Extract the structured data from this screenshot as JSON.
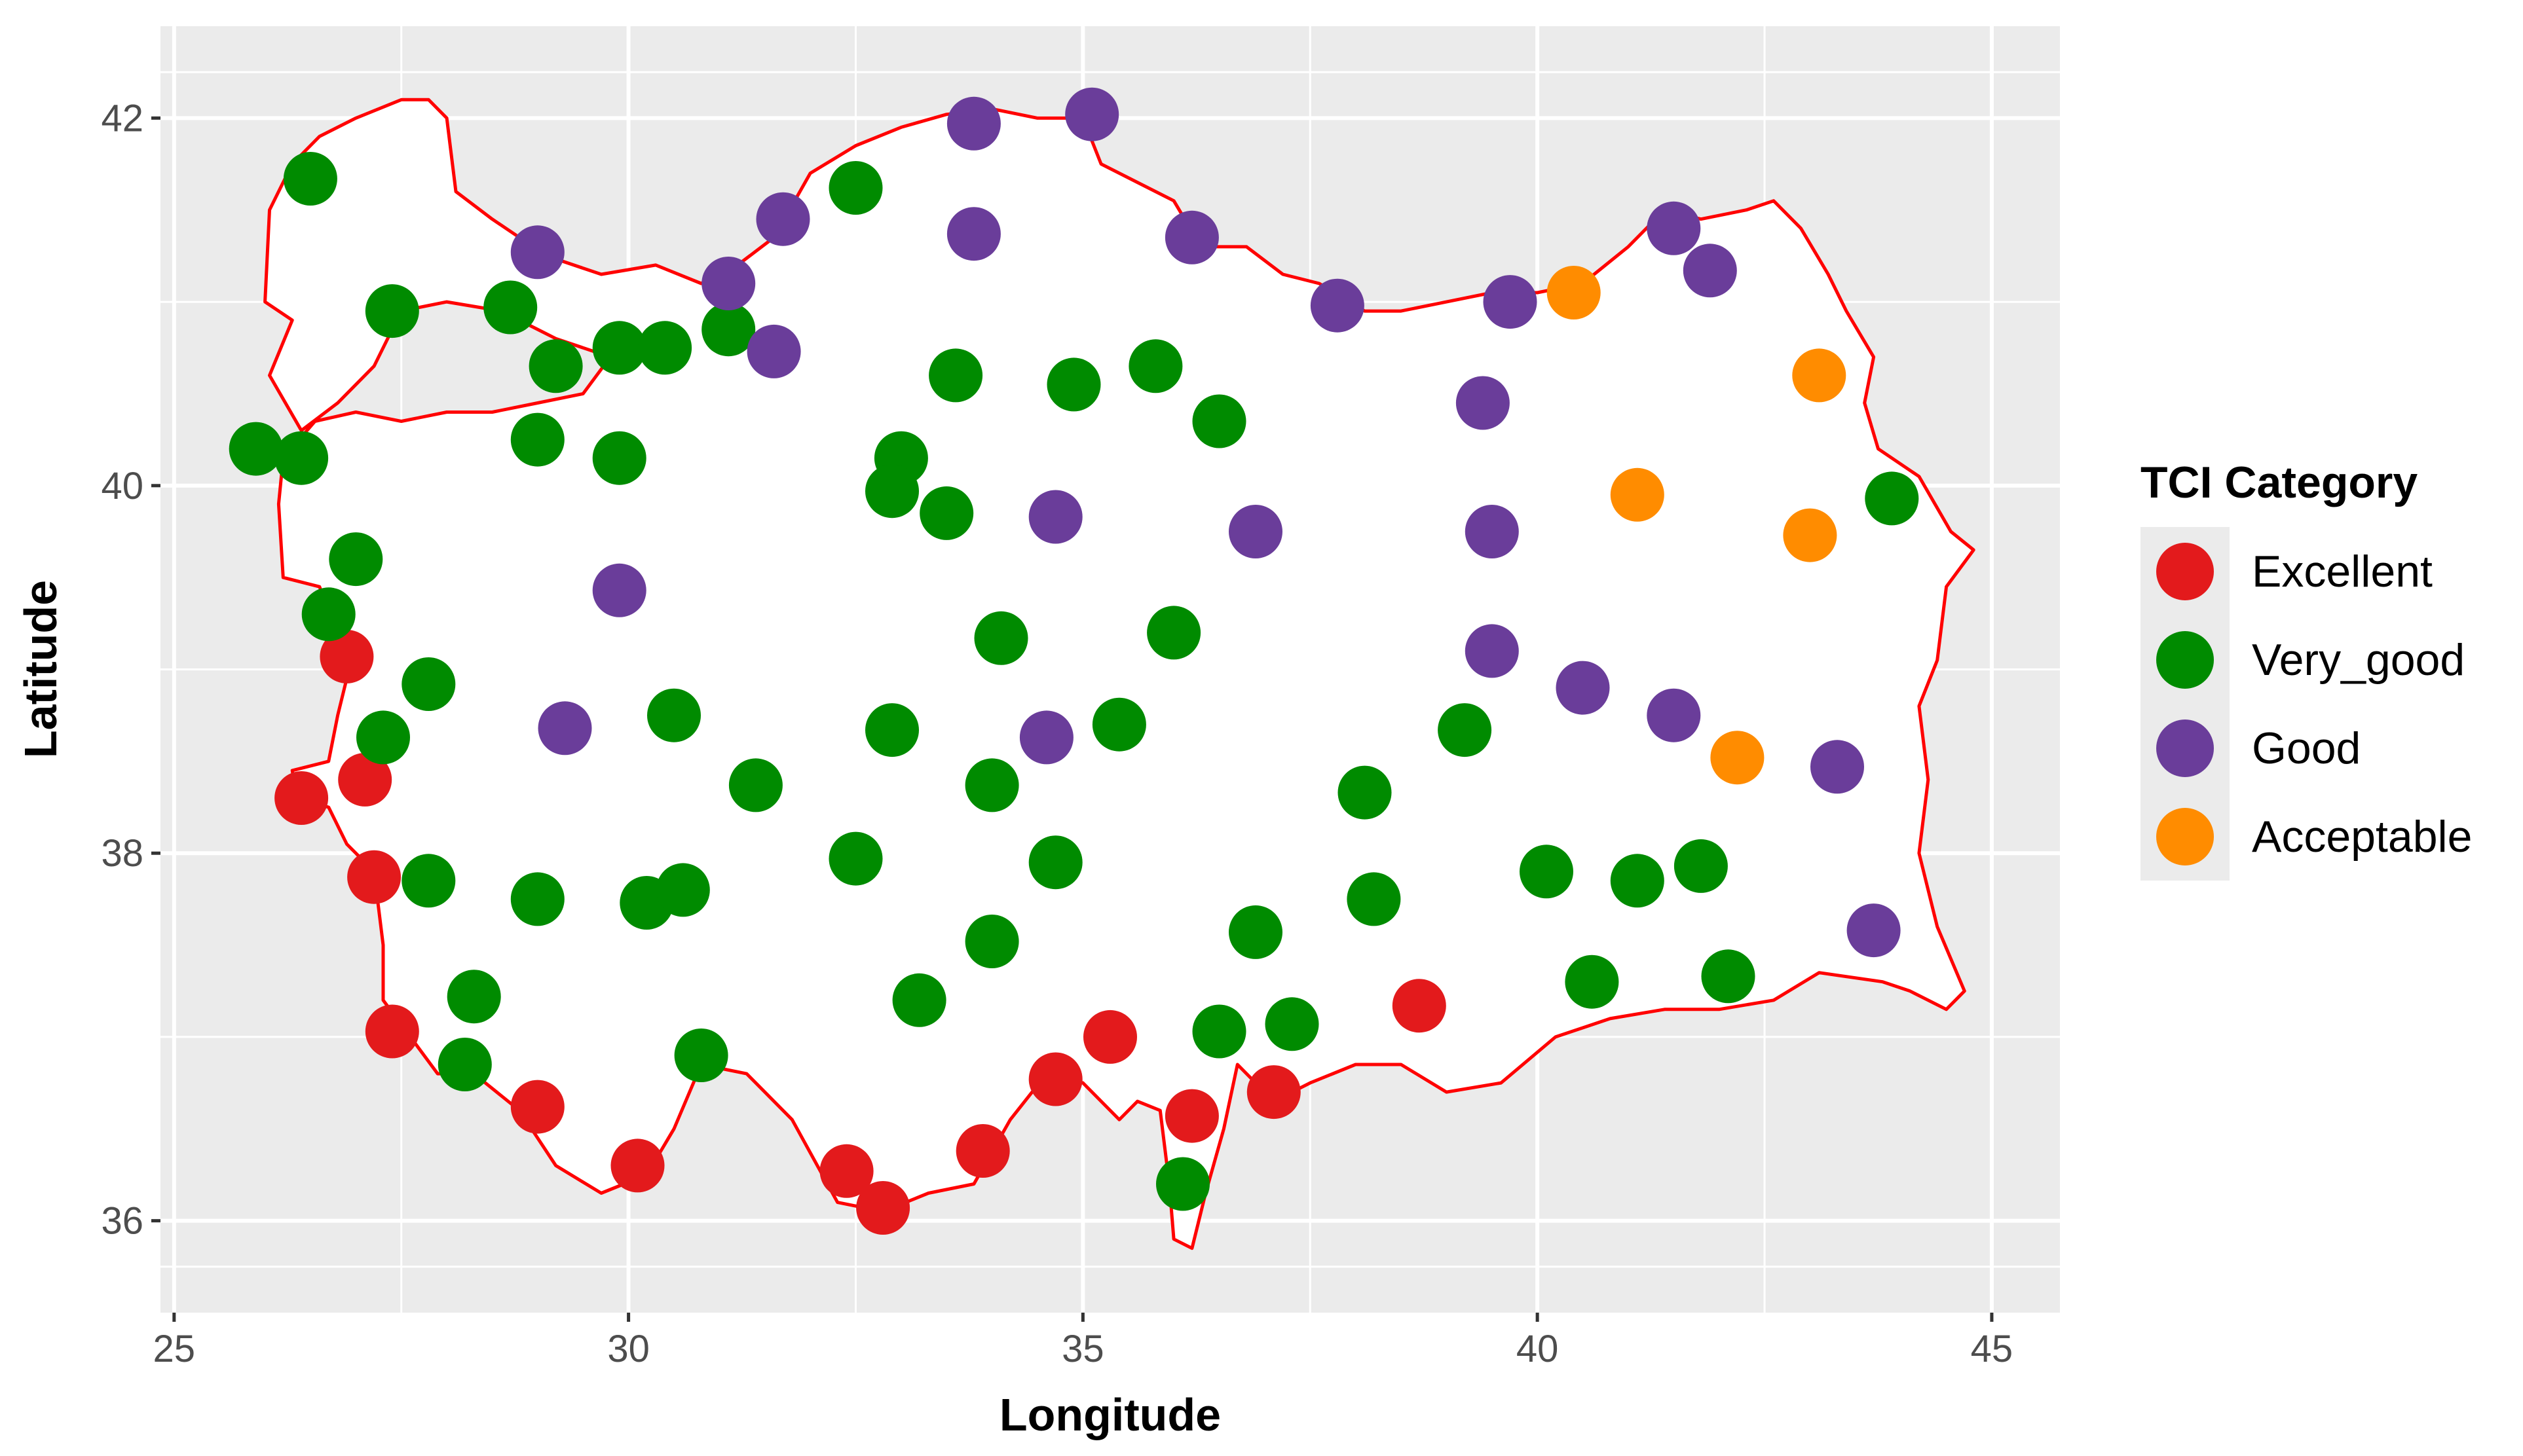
{
  "chart_data": {
    "type": "scatter",
    "xlabel": "Longitude",
    "ylabel": "Latitude",
    "xlim": [
      24.85,
      45.75
    ],
    "ylim": [
      35.5,
      42.5
    ],
    "x_ticks": [
      25,
      30,
      35,
      40,
      45
    ],
    "y_ticks": [
      36,
      38,
      40,
      42
    ],
    "x_tick_labels": [
      "25",
      "30",
      "35",
      "40",
      "45"
    ],
    "y_tick_labels": [
      "36",
      "38",
      "40",
      "42"
    ],
    "grid": true,
    "legend_position": "right",
    "legend": {
      "title": "TCI Category",
      "entries": [
        "Excellent",
        "Very_good",
        "Good",
        "Acceptable"
      ]
    },
    "colors": {
      "panel_background": "#ebebeb",
      "grid": "#ffffff",
      "country_fill": "#ffffff",
      "country_outline": "#ff0000",
      "Excellent": "#e31a1c",
      "Very_good": "#008b00",
      "Good": "#6a3d9a",
      "Acceptable": "#ff8c00"
    },
    "boundary": [
      [
        26.3,
        41.75
      ],
      [
        26.6,
        41.9
      ],
      [
        27.0,
        42.0
      ],
      [
        27.5,
        42.1
      ],
      [
        27.8,
        42.1
      ],
      [
        28.0,
        42.0
      ],
      [
        28.1,
        41.6
      ],
      [
        28.5,
        41.45
      ],
      [
        29.1,
        41.25
      ],
      [
        29.7,
        41.15
      ],
      [
        30.3,
        41.2
      ],
      [
        30.8,
        41.1
      ],
      [
        31.2,
        41.2
      ],
      [
        31.6,
        41.35
      ],
      [
        32.0,
        41.7
      ],
      [
        32.5,
        41.85
      ],
      [
        33.0,
        41.95
      ],
      [
        33.5,
        42.02
      ],
      [
        34.0,
        42.05
      ],
      [
        34.5,
        42.0
      ],
      [
        35.0,
        42.0
      ],
      [
        35.2,
        41.75
      ],
      [
        35.6,
        41.65
      ],
      [
        36.0,
        41.55
      ],
      [
        36.3,
        41.3
      ],
      [
        36.8,
        41.3
      ],
      [
        37.2,
        41.15
      ],
      [
        37.6,
        41.1
      ],
      [
        38.1,
        40.95
      ],
      [
        38.5,
        40.95
      ],
      [
        39.0,
        41.0
      ],
      [
        39.5,
        41.05
      ],
      [
        40.0,
        41.05
      ],
      [
        40.5,
        41.1
      ],
      [
        41.0,
        41.3
      ],
      [
        41.4,
        41.5
      ],
      [
        41.8,
        41.45
      ],
      [
        42.3,
        41.5
      ],
      [
        42.6,
        41.55
      ],
      [
        42.9,
        41.4
      ],
      [
        43.2,
        41.15
      ],
      [
        43.4,
        40.95
      ],
      [
        43.7,
        40.7
      ],
      [
        43.6,
        40.45
      ],
      [
        43.75,
        40.2
      ],
      [
        44.2,
        40.05
      ],
      [
        44.55,
        39.75
      ],
      [
        44.8,
        39.65
      ],
      [
        44.5,
        39.45
      ],
      [
        44.4,
        39.05
      ],
      [
        44.2,
        38.8
      ],
      [
        44.3,
        38.4
      ],
      [
        44.2,
        38.0
      ],
      [
        44.4,
        37.6
      ],
      [
        44.7,
        37.25
      ],
      [
        44.5,
        37.15
      ],
      [
        44.1,
        37.25
      ],
      [
        43.8,
        37.3
      ],
      [
        43.1,
        37.35
      ],
      [
        42.6,
        37.2
      ],
      [
        42.0,
        37.15
      ],
      [
        41.4,
        37.15
      ],
      [
        40.8,
        37.1
      ],
      [
        40.2,
        37.0
      ],
      [
        39.6,
        36.75
      ],
      [
        39.0,
        36.7
      ],
      [
        38.5,
        36.85
      ],
      [
        38.0,
        36.85
      ],
      [
        37.5,
        36.75
      ],
      [
        37.1,
        36.65
      ],
      [
        36.7,
        36.85
      ],
      [
        36.55,
        36.5
      ],
      [
        36.35,
        36.15
      ],
      [
        36.2,
        35.85
      ],
      [
        36.0,
        35.9
      ],
      [
        35.95,
        36.2
      ],
      [
        35.85,
        36.6
      ],
      [
        35.6,
        36.65
      ],
      [
        35.4,
        36.55
      ],
      [
        35.0,
        36.75
      ],
      [
        34.6,
        36.8
      ],
      [
        34.2,
        36.55
      ],
      [
        33.8,
        36.2
      ],
      [
        33.3,
        36.15
      ],
      [
        32.8,
        36.05
      ],
      [
        32.3,
        36.1
      ],
      [
        31.8,
        36.55
      ],
      [
        31.3,
        36.8
      ],
      [
        30.8,
        36.85
      ],
      [
        30.5,
        36.5
      ],
      [
        30.2,
        36.25
      ],
      [
        29.7,
        36.15
      ],
      [
        29.2,
        36.3
      ],
      [
        28.8,
        36.6
      ],
      [
        28.3,
        36.8
      ],
      [
        27.9,
        36.8
      ],
      [
        27.6,
        37.0
      ],
      [
        27.3,
        37.2
      ],
      [
        27.3,
        37.5
      ],
      [
        27.2,
        37.9
      ],
      [
        26.9,
        38.05
      ],
      [
        26.7,
        38.25
      ],
      [
        26.35,
        38.3
      ],
      [
        26.3,
        38.45
      ],
      [
        26.7,
        38.5
      ],
      [
        26.8,
        38.75
      ],
      [
        26.9,
        38.95
      ],
      [
        26.8,
        39.2
      ],
      [
        26.6,
        39.45
      ],
      [
        26.2,
        39.5
      ],
      [
        26.15,
        39.9
      ],
      [
        26.2,
        40.15
      ],
      [
        26.55,
        40.35
      ],
      [
        27.0,
        40.4
      ],
      [
        27.5,
        40.35
      ],
      [
        28.0,
        40.4
      ],
      [
        28.5,
        40.4
      ],
      [
        29.0,
        40.45
      ],
      [
        29.5,
        40.5
      ],
      [
        29.8,
        40.7
      ],
      [
        29.2,
        40.8
      ],
      [
        28.6,
        40.95
      ],
      [
        28.0,
        41.0
      ],
      [
        27.5,
        40.95
      ],
      [
        27.2,
        40.65
      ],
      [
        26.8,
        40.45
      ],
      [
        26.4,
        40.3
      ],
      [
        26.05,
        40.6
      ],
      [
        26.3,
        40.9
      ],
      [
        26.0,
        41.0
      ],
      [
        26.05,
        41.5
      ],
      [
        26.3,
        41.75
      ]
    ],
    "series": [
      {
        "name": "Excellent",
        "points": [
          [
            26.9,
            39.07
          ],
          [
            27.1,
            38.4
          ],
          [
            26.4,
            38.3
          ],
          [
            27.2,
            37.87
          ],
          [
            27.4,
            37.03
          ],
          [
            29.0,
            36.62
          ],
          [
            30.1,
            36.3
          ],
          [
            32.4,
            36.27
          ],
          [
            32.8,
            36.07
          ],
          [
            33.9,
            36.38
          ],
          [
            34.7,
            36.77
          ],
          [
            35.3,
            37.0
          ],
          [
            36.2,
            36.57
          ],
          [
            37.1,
            36.7
          ],
          [
            38.7,
            37.17
          ]
        ]
      },
      {
        "name": "Very_good",
        "points": [
          [
            26.5,
            41.67
          ],
          [
            27.4,
            40.95
          ],
          [
            28.7,
            40.97
          ],
          [
            29.2,
            40.65
          ],
          [
            29.9,
            40.75
          ],
          [
            30.4,
            40.75
          ],
          [
            31.1,
            40.85
          ],
          [
            32.5,
            41.62
          ],
          [
            25.9,
            40.2
          ],
          [
            26.4,
            40.15
          ],
          [
            29.0,
            40.25
          ],
          [
            29.9,
            40.15
          ],
          [
            27.0,
            39.6
          ],
          [
            26.7,
            39.3
          ],
          [
            27.8,
            38.92
          ],
          [
            27.3,
            38.63
          ],
          [
            30.5,
            38.75
          ],
          [
            31.4,
            38.37
          ],
          [
            32.9,
            38.67
          ],
          [
            33.0,
            40.15
          ],
          [
            32.9,
            39.97
          ],
          [
            33.5,
            39.85
          ],
          [
            33.6,
            40.6
          ],
          [
            34.9,
            40.55
          ],
          [
            35.8,
            40.65
          ],
          [
            36.5,
            40.35
          ],
          [
            34.1,
            39.17
          ],
          [
            36.0,
            39.2
          ],
          [
            35.4,
            38.7
          ],
          [
            34.0,
            38.37
          ],
          [
            32.5,
            37.97
          ],
          [
            34.7,
            37.95
          ],
          [
            33.2,
            37.2
          ],
          [
            34.0,
            37.52
          ],
          [
            29.0,
            37.75
          ],
          [
            30.2,
            37.73
          ],
          [
            30.6,
            37.8
          ],
          [
            27.8,
            37.85
          ],
          [
            28.3,
            37.22
          ],
          [
            28.2,
            36.85
          ],
          [
            30.8,
            36.9
          ],
          [
            36.9,
            37.57
          ],
          [
            36.5,
            37.03
          ],
          [
            37.3,
            37.07
          ],
          [
            36.1,
            36.2
          ],
          [
            38.1,
            38.33
          ],
          [
            38.2,
            37.75
          ],
          [
            39.2,
            38.67
          ],
          [
            40.1,
            37.9
          ],
          [
            41.1,
            37.85
          ],
          [
            41.8,
            37.93
          ],
          [
            40.6,
            37.3
          ],
          [
            42.1,
            37.33
          ],
          [
            43.9,
            39.93
          ]
        ]
      },
      {
        "name": "Good",
        "points": [
          [
            29.0,
            41.27
          ],
          [
            31.1,
            41.1
          ],
          [
            31.7,
            41.45
          ],
          [
            31.6,
            40.73
          ],
          [
            33.8,
            41.97
          ],
          [
            33.8,
            41.37
          ],
          [
            35.1,
            42.02
          ],
          [
            36.2,
            41.35
          ],
          [
            37.8,
            40.98
          ],
          [
            39.7,
            41.0
          ],
          [
            41.5,
            41.4
          ],
          [
            41.9,
            41.17
          ],
          [
            39.4,
            40.45
          ],
          [
            39.5,
            39.75
          ],
          [
            36.9,
            39.75
          ],
          [
            34.7,
            39.83
          ],
          [
            29.9,
            39.43
          ],
          [
            29.3,
            38.68
          ],
          [
            34.6,
            38.63
          ],
          [
            39.5,
            39.1
          ],
          [
            40.5,
            38.9
          ],
          [
            41.5,
            38.75
          ],
          [
            43.3,
            38.47
          ],
          [
            43.7,
            37.58
          ]
        ]
      },
      {
        "name": "Acceptable",
        "points": [
          [
            40.4,
            41.05
          ],
          [
            41.1,
            39.95
          ],
          [
            42.2,
            38.52
          ],
          [
            43.1,
            40.6
          ],
          [
            43.0,
            39.73
          ]
        ]
      }
    ]
  }
}
